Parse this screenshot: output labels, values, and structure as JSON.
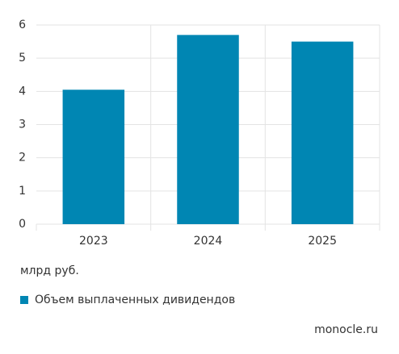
{
  "chart_data": {
    "type": "bar",
    "categories": [
      "2023",
      "2024",
      "2025"
    ],
    "series": [
      {
        "name": "Объем выплаченных дивидендов",
        "color": "#0086b3",
        "values": [
          4.05,
          5.7,
          5.5
        ]
      }
    ],
    "ylim": [
      0,
      6
    ],
    "yticks": [
      0,
      1,
      2,
      3,
      4,
      5,
      6
    ],
    "grid": true,
    "y_unit": "млрд руб.",
    "source": "monocle.ru"
  }
}
